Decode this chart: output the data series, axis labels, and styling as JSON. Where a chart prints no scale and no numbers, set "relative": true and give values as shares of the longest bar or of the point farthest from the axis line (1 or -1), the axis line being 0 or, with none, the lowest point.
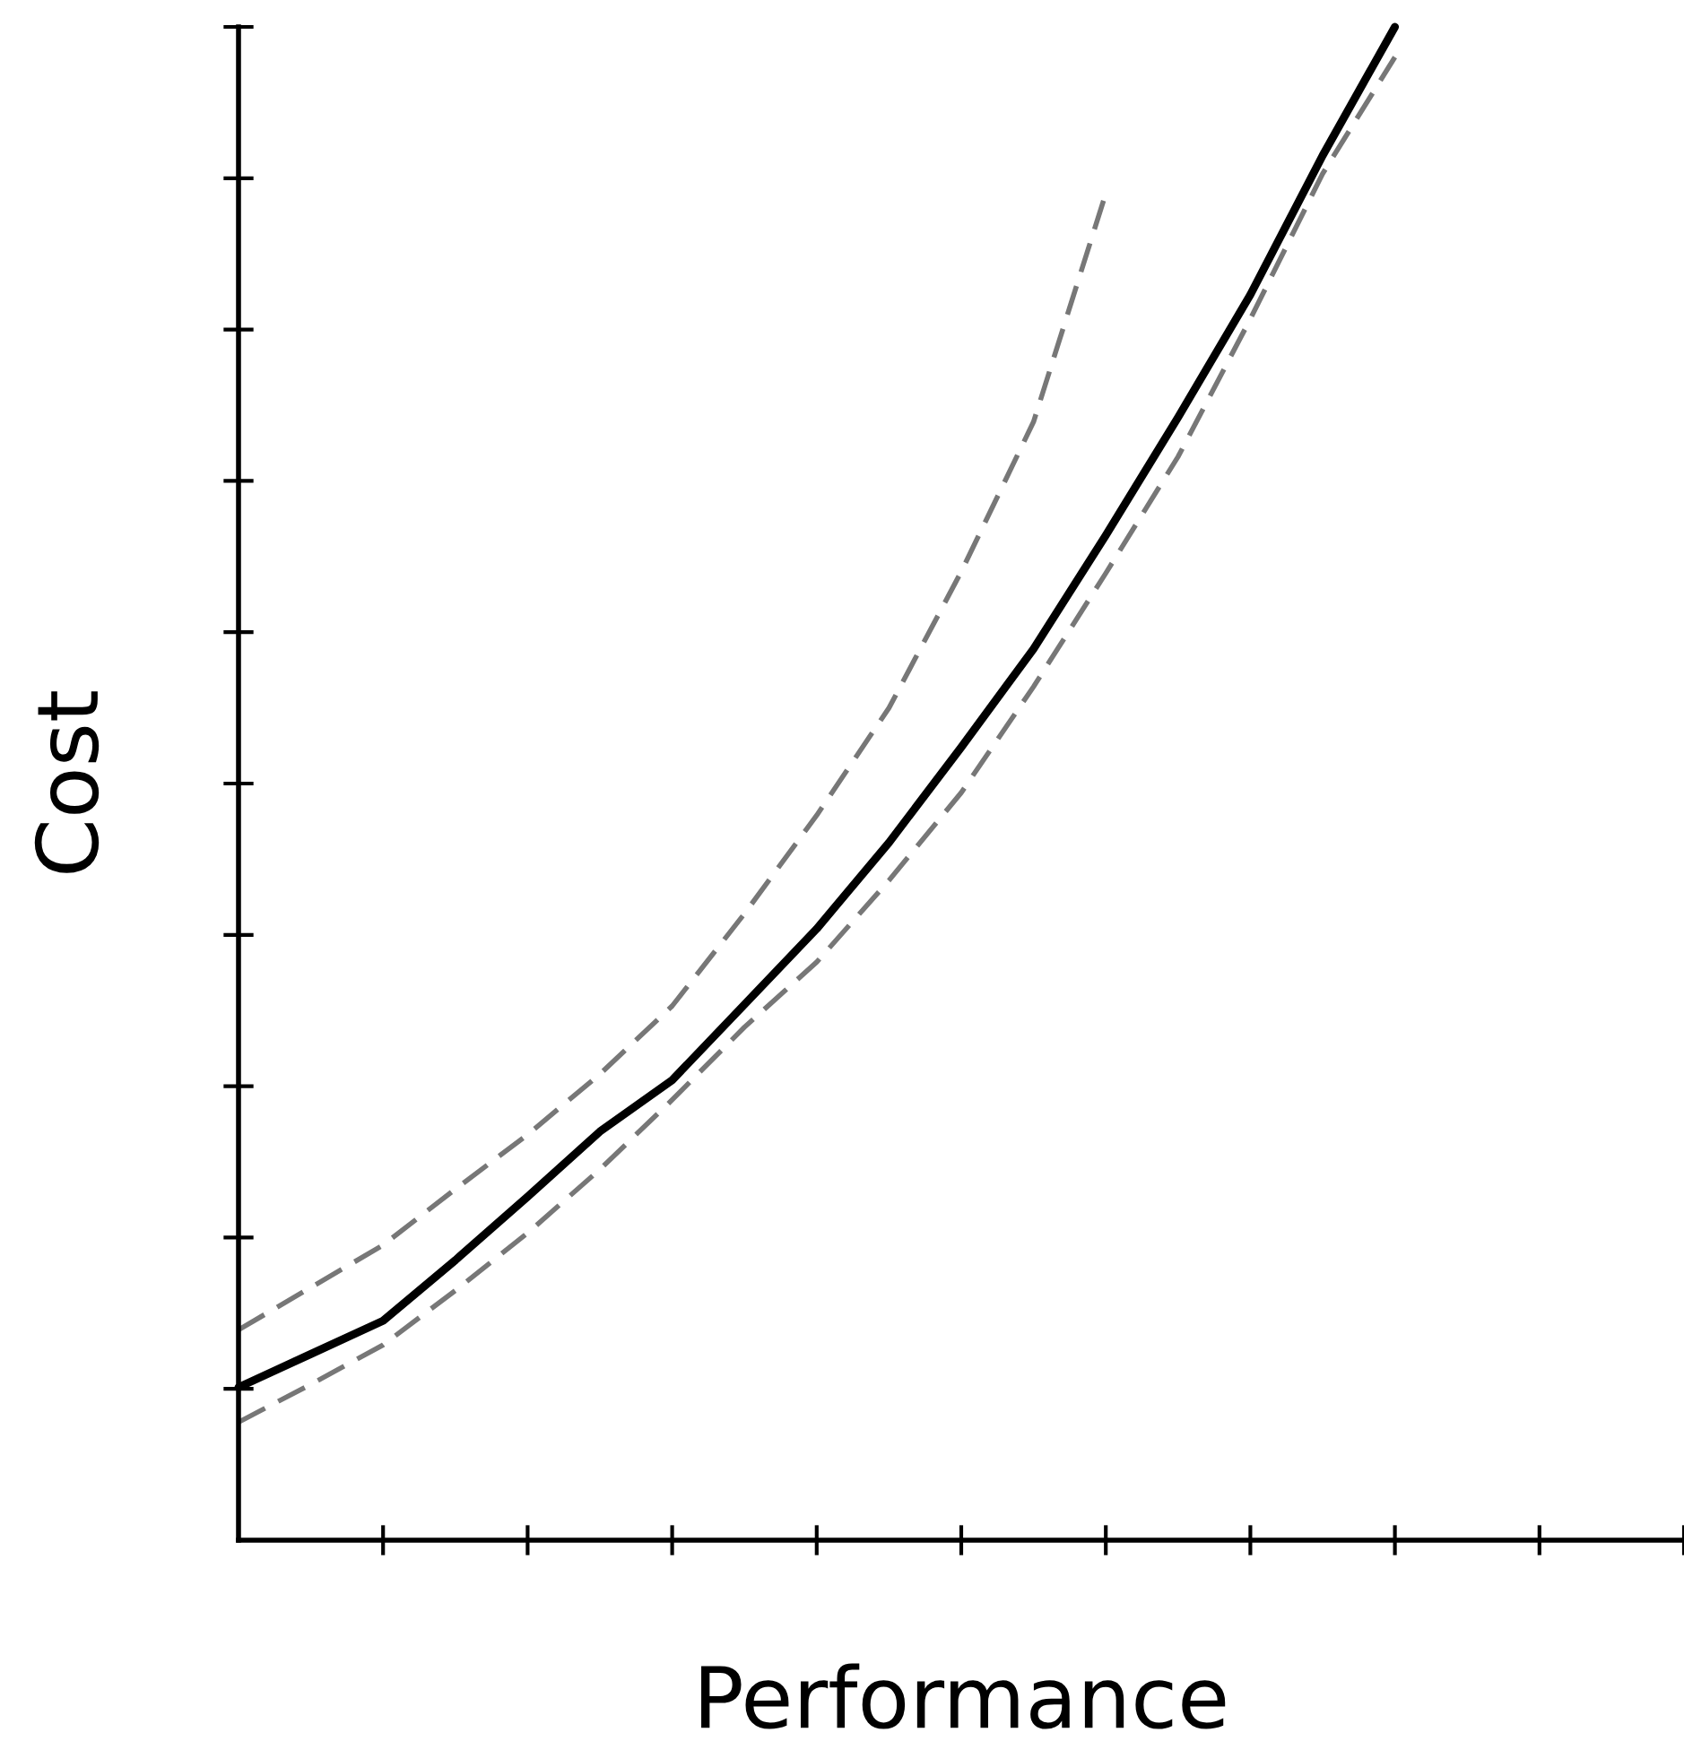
{
  "chart_data": {
    "type": "line",
    "relative": true,
    "xlabel": "Performance",
    "ylabel": "Cost",
    "categories": [
      null,
      null,
      null,
      null,
      null,
      null,
      null,
      null,
      null,
      null,
      null,
      null,
      null,
      null,
      null,
      null,
      null,
      null,
      null,
      null,
      null
    ],
    "grid": false,
    "legend": false,
    "marker": "none",
    "series": [
      {
        "color": "#777777",
        "line_style": "dashed",
        "values": [
          0.139,
          0.167,
          0.195,
          0.232,
          0.268,
          0.308,
          0.353,
          0.414,
          0.479,
          0.55,
          0.64,
          0.739,
          0.89,
          null,
          null,
          null,
          null,
          null,
          null,
          null,
          null
        ]
      },
      {
        "color": "#000000",
        "line_style": "solid",
        "values": [
          0.101,
          0.123,
          0.145,
          0.185,
          0.227,
          0.27,
          0.304,
          0.354,
          0.404,
          0.461,
          0.524,
          0.589,
          0.664,
          0.742,
          0.823,
          0.915,
          1.0,
          null,
          null,
          null,
          null
        ]
      },
      {
        "color": "#777777",
        "line_style": "dashed",
        "values": [
          0.078,
          0.103,
          0.129,
          0.165,
          0.203,
          0.245,
          0.291,
          0.339,
          0.382,
          0.436,
          0.494,
          0.564,
          0.639,
          0.716,
          0.807,
          0.903,
          0.98,
          null,
          null,
          null,
          null
        ]
      }
    ]
  }
}
